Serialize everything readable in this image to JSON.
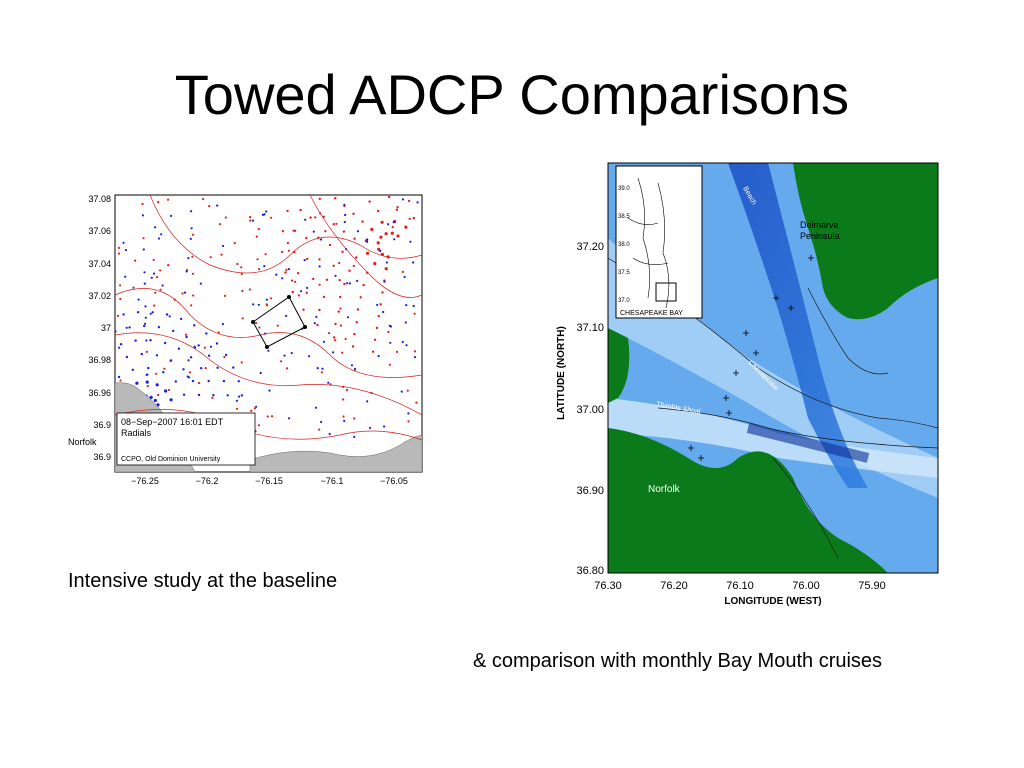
{
  "slide": {
    "title": "Towed ADCP Comparisons",
    "caption_left": "Intensive study at the baseline",
    "caption_right": "& comparison with monthly Bay Mouth cruises"
  },
  "left_figure": {
    "y_ticks": [
      "37.08",
      "37.06",
      "37.04",
      "37.02",
      "37",
      "36.98",
      "36.96",
      "36.9",
      "36.9"
    ],
    "x_ticks": [
      "−76.25",
      "−76.2",
      "−76.15",
      "−76.1",
      "−76.05"
    ],
    "norfolk_label": "Norfolk",
    "legend_line1": "08−Sep−2007 16:01 EDT",
    "legend_line2": "Radials",
    "legend_credit": "CCPO, Old Dominion University",
    "colors": {
      "red_radial": "#e51c1c",
      "blue_radial": "#1c1ce5",
      "land": "#b9b9b9"
    }
  },
  "right_figure": {
    "y_ticks": [
      "37.20",
      "37.10",
      "37.00",
      "36.90",
      "36.80"
    ],
    "x_ticks": [
      "76.30",
      "76.20",
      "76.10",
      "76.00",
      "75.90"
    ],
    "xlabel": "LONGITUDE (WEST)",
    "ylabel": "LATITUDE (NORTH)",
    "labels": {
      "delmarva": "Delmarva",
      "peninsula": "Peninsula",
      "norfolk": "Norfolk",
      "inset": "CHESAPEAKE BAY",
      "channel": "Chesapeake",
      "thimble": "Thimble Shoal",
      "beach": "Beach"
    },
    "inset_ticks": [
      "39.0",
      "38.5",
      "38.0",
      "37.5",
      "37.0"
    ],
    "colors": {
      "land": "#0a7a1a",
      "water": "#66aaee",
      "deep": "#1f5fd0"
    }
  }
}
